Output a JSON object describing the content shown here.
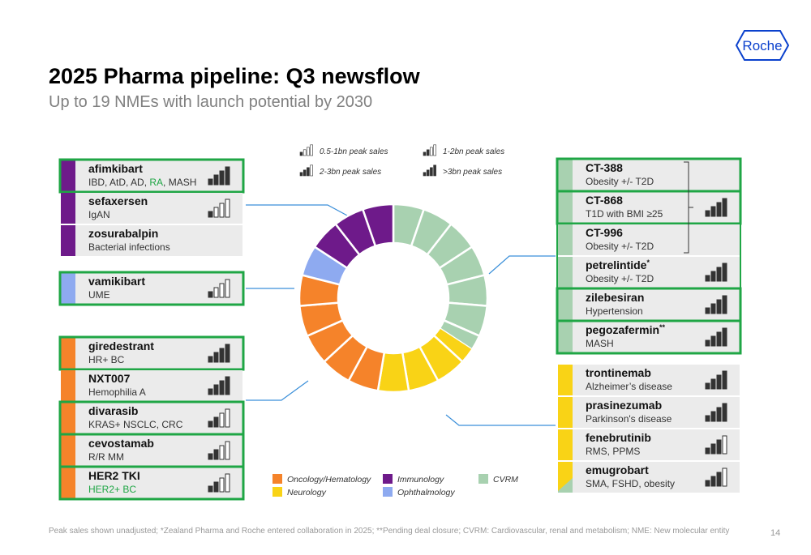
{
  "header": {
    "title": "2025 Pharma pipeline: Q3 newsflow",
    "subtitle": "Up to 19 NMEs with launch potential by 2030",
    "logo": "Roche"
  },
  "sales_legend": [
    "0.5-1bn peak sales",
    "1-2bn peak sales",
    "2-3bn peak sales",
    ">3bn peak sales"
  ],
  "areas": [
    {
      "name": "Oncology/Hematology",
      "color": "#f5832a",
      "items": [
        {
          "name": "giredestrant",
          "indication": [
            "HR+ BC"
          ],
          "sales": 3,
          "highlight": true
        },
        {
          "name": "NXT007",
          "indication": [
            "Hemophilia A"
          ],
          "sales": 3,
          "highlight": false
        },
        {
          "name": "divarasib",
          "indication": [
            "KRAS+ NSCLC, CRC"
          ],
          "sales": 1,
          "highlight": true
        },
        {
          "name": "cevostamab",
          "indication": [
            "R/R MM"
          ],
          "sales": 1,
          "highlight": true
        },
        {
          "name": "HER2 TKI",
          "indication": [
            "HER2+ BC"
          ],
          "green": [
            0
          ],
          "sales": 1,
          "highlight": true
        }
      ]
    },
    {
      "name": "Neurology",
      "color": "#f9d316",
      "items": [
        {
          "name": "trontinemab",
          "indication": [
            "Alzheimer’s disease"
          ],
          "sales": 3,
          "highlight": false
        },
        {
          "name": "prasinezumab",
          "indication": [
            "Parkinson's disease"
          ],
          "sales": 3,
          "highlight": false
        },
        {
          "name": "fenebrutinib",
          "indication": [
            "RMS, PPMS"
          ],
          "sales": 2,
          "highlight": false
        },
        {
          "name": "emugrobart",
          "indication": [
            "SMA, FSHD, obesity"
          ],
          "sales": 2,
          "highlight": false,
          "split_color": "#a8d1b0"
        }
      ]
    },
    {
      "name": "Immunology",
      "color": "#6e1a8a",
      "items": [
        {
          "name": "afimkibart",
          "indication": [
            "IBD, AtD, AD, ",
            "RA",
            ", MASH"
          ],
          "green": [
            1
          ],
          "sales": 3,
          "highlight": true
        },
        {
          "name": "sefaxersen",
          "indication": [
            "IgAN"
          ],
          "sales": 0,
          "highlight": false
        },
        {
          "name": "zosurabalpin",
          "indication": [
            "Bacterial infections"
          ],
          "highlight": false
        }
      ]
    },
    {
      "name": "Ophthalmology",
      "color": "#8eaaf0",
      "items": [
        {
          "name": "vamikibart",
          "indication": [
            "UME"
          ],
          "sales": 0,
          "highlight": true
        }
      ]
    },
    {
      "name": "CVRM",
      "color": "#a8d1b0",
      "items": [
        {
          "name": "CT-388",
          "indication": [
            "Obesity +/- T2D"
          ],
          "highlight": true
        },
        {
          "name": "CT-868",
          "indication": [
            "T1D with BMI ≥25"
          ],
          "sales": 3,
          "highlight": true
        },
        {
          "name": "CT-996",
          "indication": [
            "Obesity +/- T2D"
          ],
          "highlight": false
        },
        {
          "name": "petrelintide",
          "mark": "*",
          "indication": [
            "Obesity +/- T2D"
          ],
          "sales": 3,
          "highlight": false
        },
        {
          "name": "zilebesiran",
          "indication": [
            "Hypertension"
          ],
          "sales": 3,
          "highlight": true
        },
        {
          "name": "pegozafermin",
          "mark": "**",
          "indication": [
            "MASH"
          ],
          "sales": 3,
          "highlight": true
        }
      ]
    }
  ],
  "footnote": "Peak sales shown unadjusted;  *Zealand Pharma and Roche entered collaboration in 2025; **Pending deal closure; CVRM: Cardiovascular, renal and metabolism; NME: New molecular entity",
  "page": "14"
}
